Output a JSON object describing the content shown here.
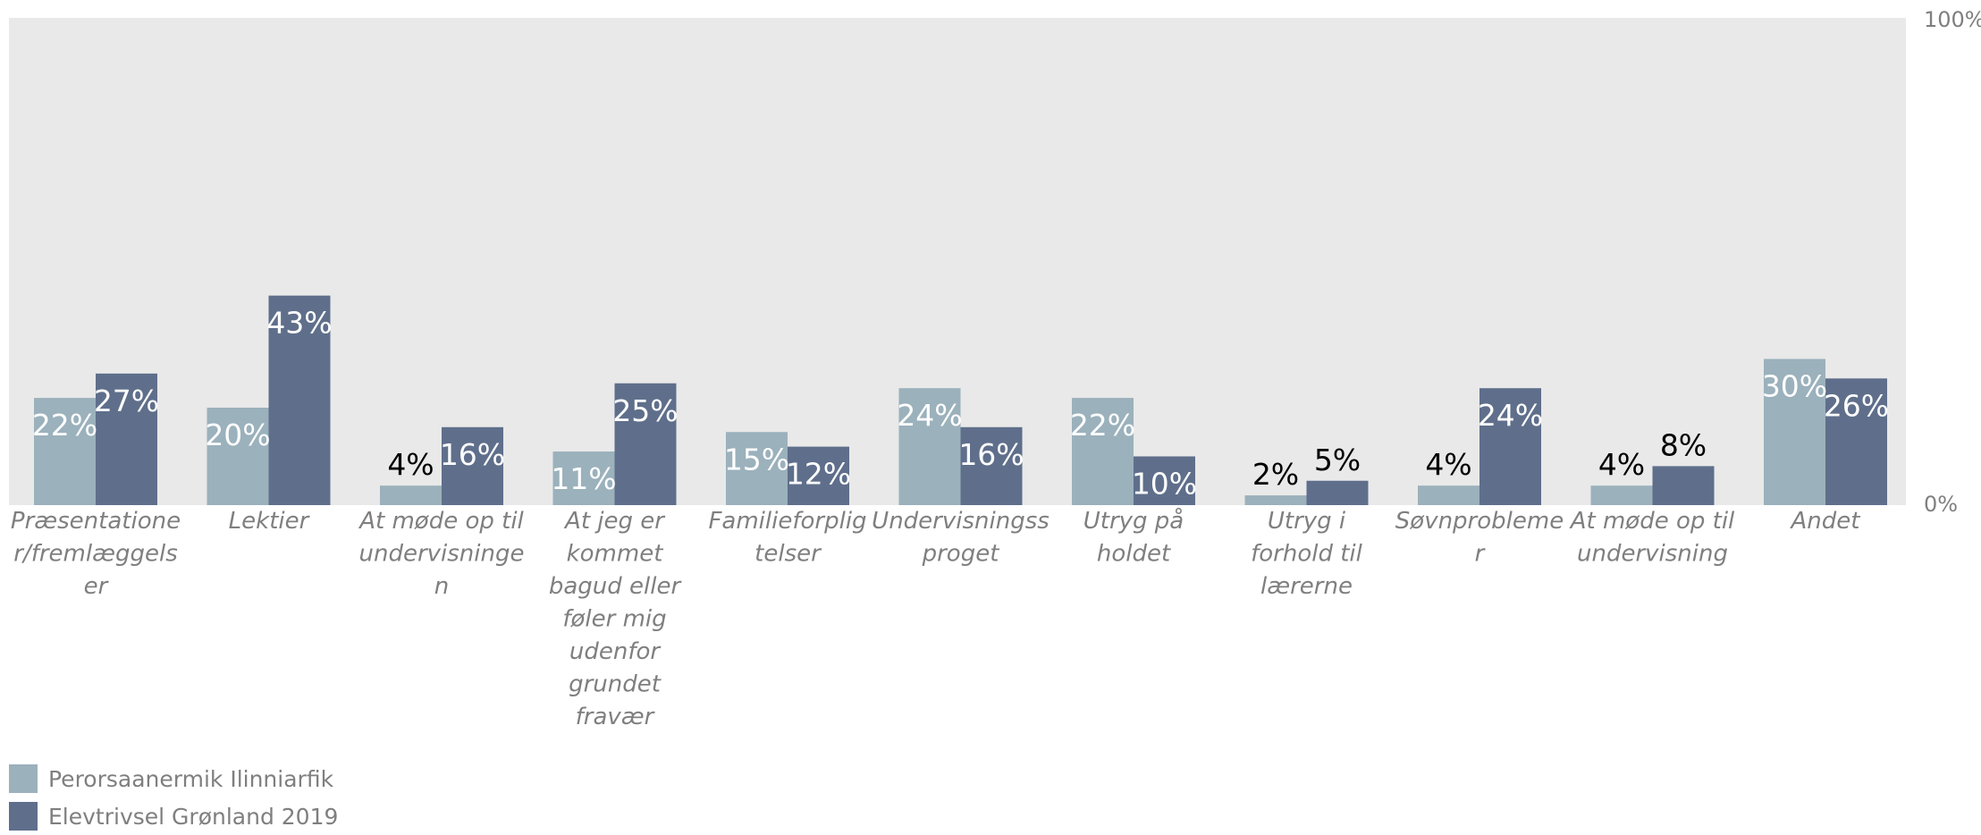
{
  "chart_data": {
    "type": "bar",
    "categories": [
      [
        "Præsentatione",
        "r/fremlæggels",
        "er"
      ],
      [
        "Lektier"
      ],
      [
        "At møde op til",
        "undervisninge",
        "n"
      ],
      [
        "At jeg er",
        "kommet",
        "bagud eller",
        "føler mig",
        "udenfor",
        "grundet",
        "fravær"
      ],
      [
        "Familieforplig",
        "telser"
      ],
      [
        "Undervisningss",
        "proget"
      ],
      [
        "Utryg på",
        "holdet"
      ],
      [
        "Utryg i",
        "forhold til",
        "lærerne"
      ],
      [
        "Søvnprobleme",
        "r"
      ],
      [
        "At møde op til",
        "undervisning"
      ],
      [
        "Andet"
      ]
    ],
    "series": [
      {
        "name": "Perorsaanermik Ilinniarfik",
        "color": "#9bb1bc",
        "values": [
          22,
          20,
          4,
          11,
          15,
          24,
          22,
          2,
          4,
          4,
          30
        ]
      },
      {
        "name": "Elevtrivsel Grønland 2019",
        "color": "#5f6f8b",
        "values": [
          27,
          43,
          16,
          25,
          12,
          16,
          10,
          5,
          24,
          8,
          26
        ]
      }
    ],
    "ylim": [
      0,
      100
    ],
    "yticks": [
      "0%",
      "100%"
    ],
    "plot_background": "#e9e9e9",
    "value_suffix": "%",
    "legend_position": "bottom-left"
  }
}
